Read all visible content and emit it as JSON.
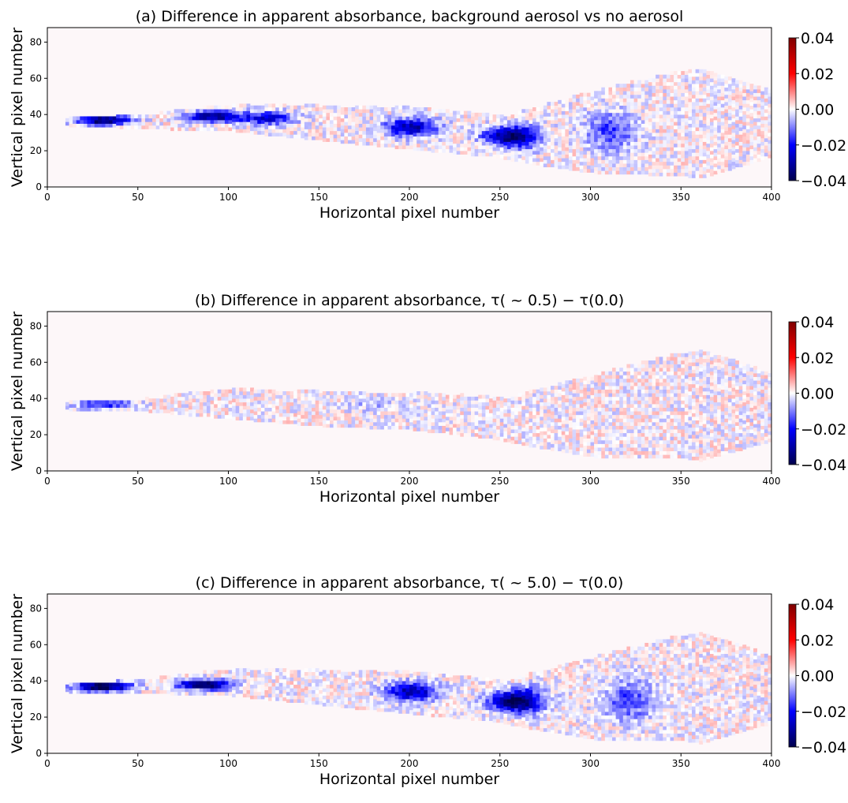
{
  "chart_data": [
    {
      "type": "heatmap",
      "title": "(a) Difference in apparent absorbance, background aerosol vs no aerosol",
      "xlabel": "Horizontal pixel number",
      "ylabel": "Vertical pixel number",
      "xlim": [
        0,
        400
      ],
      "ylim": [
        0,
        88
      ],
      "x_ticks": [
        0,
        50,
        100,
        150,
        200,
        250,
        300,
        350,
        400
      ],
      "y_ticks": [
        0,
        20,
        40,
        60,
        80
      ],
      "colorbar": {
        "colormap": "seismic",
        "range": [
          -0.04,
          0.04
        ],
        "ticks": [
          "0.04",
          "0.02",
          "0.00",
          "−0.02",
          "−0.04"
        ]
      },
      "plume_centerline": [
        [
          10,
          36
        ],
        [
          50,
          35.5
        ],
        [
          100,
          38
        ],
        [
          150,
          35
        ],
        [
          200,
          32
        ],
        [
          255,
          27
        ],
        [
          300,
          30
        ],
        [
          350,
          35
        ],
        [
          400,
          35
        ]
      ],
      "plume_halfwidth": [
        [
          10,
          2
        ],
        [
          50,
          3
        ],
        [
          100,
          7
        ],
        [
          150,
          9
        ],
        [
          200,
          11
        ],
        [
          250,
          11
        ],
        [
          300,
          22
        ],
        [
          360,
          30
        ],
        [
          400,
          18
        ]
      ],
      "hotspots": [
        {
          "x": 30,
          "y": 36,
          "value": -0.04
        },
        {
          "x": 90,
          "y": 38,
          "value": -0.035
        },
        {
          "x": 120,
          "y": 37,
          "value": -0.025
        },
        {
          "x": 200,
          "y": 32,
          "value": -0.03
        },
        {
          "x": 255,
          "y": 27,
          "value": -0.038
        },
        {
          "x": 310,
          "y": 30,
          "value": -0.015
        }
      ]
    },
    {
      "type": "heatmap",
      "title": "(b) Difference in apparent absorbance, τ( ~ 0.5) − τ(0.0)",
      "xlabel": "Horizontal pixel number",
      "ylabel": "Vertical pixel number",
      "xlim": [
        0,
        400
      ],
      "ylim": [
        0,
        88
      ],
      "x_ticks": [
        0,
        50,
        100,
        150,
        200,
        250,
        300,
        350,
        400
      ],
      "y_ticks": [
        0,
        20,
        40,
        60,
        80
      ],
      "colorbar": {
        "colormap": "seismic",
        "range": [
          -0.04,
          0.04
        ],
        "ticks": [
          "0.04",
          "0.02",
          "0.00",
          "−0.02",
          "−0.04"
        ]
      },
      "plume_centerline": [
        [
          10,
          36
        ],
        [
          50,
          36
        ],
        [
          100,
          37
        ],
        [
          150,
          34
        ],
        [
          200,
          33
        ],
        [
          255,
          28
        ],
        [
          300,
          30
        ],
        [
          350,
          36
        ],
        [
          400,
          35
        ]
      ],
      "plume_halfwidth": [
        [
          10,
          2
        ],
        [
          50,
          2.5
        ],
        [
          100,
          8
        ],
        [
          150,
          9
        ],
        [
          200,
          10
        ],
        [
          250,
          11
        ],
        [
          300,
          22
        ],
        [
          360,
          30
        ],
        [
          400,
          18
        ]
      ],
      "hotspots": [
        {
          "x": 30,
          "y": 36,
          "value": -0.02
        },
        {
          "x": 180,
          "y": 36,
          "value": -0.006
        }
      ]
    },
    {
      "type": "heatmap",
      "title": "(c) Difference in apparent absorbance, τ( ~ 5.0) − τ(0.0)",
      "xlabel": "Horizontal pixel number",
      "ylabel": "Vertical pixel number",
      "xlim": [
        0,
        400
      ],
      "ylim": [
        0,
        88
      ],
      "x_ticks": [
        0,
        50,
        100,
        150,
        200,
        250,
        300,
        350,
        400
      ],
      "y_ticks": [
        0,
        20,
        40,
        60,
        80
      ],
      "colorbar": {
        "colormap": "seismic",
        "range": [
          -0.04,
          0.04
        ],
        "ticks": [
          "0.04",
          "0.02",
          "0.00",
          "−0.02",
          "−0.04"
        ]
      },
      "plume_centerline": [
        [
          10,
          36
        ],
        [
          50,
          36.5
        ],
        [
          100,
          39
        ],
        [
          150,
          36
        ],
        [
          200,
          33
        ],
        [
          255,
          28
        ],
        [
          300,
          30
        ],
        [
          350,
          36
        ],
        [
          400,
          35
        ]
      ],
      "plume_halfwidth": [
        [
          10,
          2
        ],
        [
          50,
          3
        ],
        [
          100,
          7
        ],
        [
          150,
          9
        ],
        [
          200,
          11
        ],
        [
          250,
          11
        ],
        [
          300,
          22
        ],
        [
          360,
          30
        ],
        [
          400,
          18
        ]
      ],
      "hotspots": [
        {
          "x": 30,
          "y": 36,
          "value": -0.045
        },
        {
          "x": 85,
          "y": 37,
          "value": -0.04
        },
        {
          "x": 200,
          "y": 33,
          "value": -0.03
        },
        {
          "x": 258,
          "y": 28,
          "value": -0.042
        },
        {
          "x": 320,
          "y": 28,
          "value": -0.015
        }
      ]
    }
  ]
}
